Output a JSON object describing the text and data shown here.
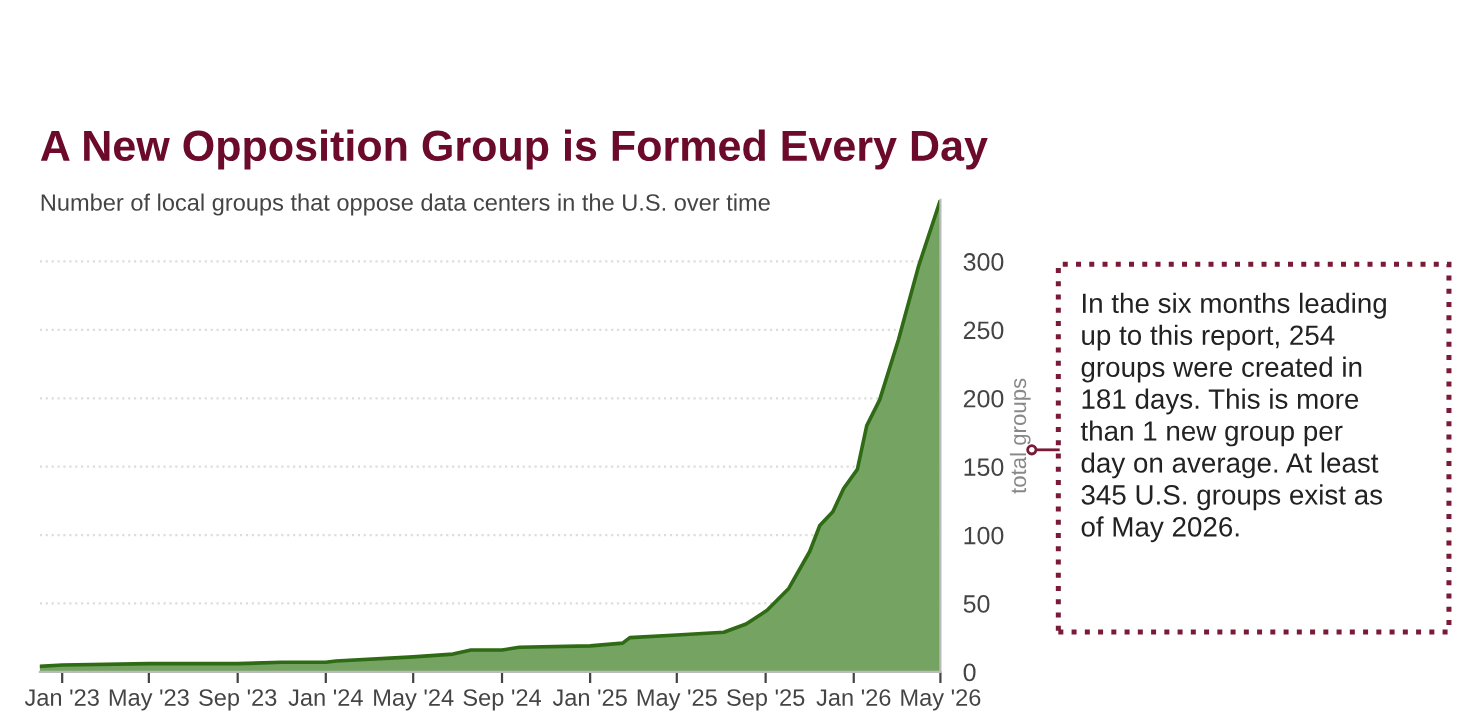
{
  "chart_data": {
    "type": "area",
    "title": "A New Opposition Group is Formed Every Day",
    "subtitle": "Number of local groups that oppose data centers in the U.S. over time",
    "ylabel": "total groups",
    "x": [
      "2022-12-01",
      "2023-01-01",
      "2023-05-01",
      "2023-09-01",
      "2023-11-01",
      "2024-01-01",
      "2024-01-15",
      "2024-05-01",
      "2024-06-25",
      "2024-07-20",
      "2024-09-01",
      "2024-09-25",
      "2025-01-01",
      "2025-02-15",
      "2025-02-25",
      "2025-05-01",
      "2025-07-05",
      "2025-08-05",
      "2025-09-03",
      "2025-10-03",
      "2025-11-01",
      "2025-11-15",
      "2025-12-03",
      "2025-12-18",
      "2026-01-06",
      "2026-01-19",
      "2026-02-06",
      "2026-03-04",
      "2026-04-01",
      "2026-05-01"
    ],
    "series": [
      {
        "color": "#6e9e5a",
        "values": [
          4,
          5,
          6,
          6,
          7,
          7,
          8,
          11,
          13,
          16,
          16,
          18,
          19,
          21,
          25,
          27,
          29,
          35,
          45,
          61,
          88,
          107,
          117,
          134,
          148,
          180,
          199,
          243,
          297,
          345
        ]
      }
    ],
    "xlim": [
      "2022-12-01",
      "2026-05-01"
    ],
    "xticks": [
      {
        "value": "2023-01-01",
        "label": "Jan '23"
      },
      {
        "value": "2023-05-01",
        "label": "May '23"
      },
      {
        "value": "2023-09-01",
        "label": "Sep '23"
      },
      {
        "value": "2024-01-01",
        "label": "Jan '24"
      },
      {
        "value": "2024-05-01",
        "label": "May '24"
      },
      {
        "value": "2024-09-01",
        "label": "Sep '24"
      },
      {
        "value": "2025-01-01",
        "label": "Jan '25"
      },
      {
        "value": "2025-05-01",
        "label": "May '25"
      },
      {
        "value": "2025-09-01",
        "label": "Sep '25"
      },
      {
        "value": "2026-01-01",
        "label": "Jan '26"
      },
      {
        "value": "2026-05-01",
        "label": "May '26"
      }
    ],
    "ylim": [
      0,
      345
    ],
    "yticks": [
      0,
      50,
      100,
      150,
      200,
      250,
      300
    ],
    "grid": "y",
    "legend": false,
    "annotations": [
      "In the six months leading\nup to this report, 254\ngroups were created in\n181 days. This is more\nthan 1 new group per\nday on average. At least\n345 U.S. groups exist as\nof May 2026."
    ]
  }
}
